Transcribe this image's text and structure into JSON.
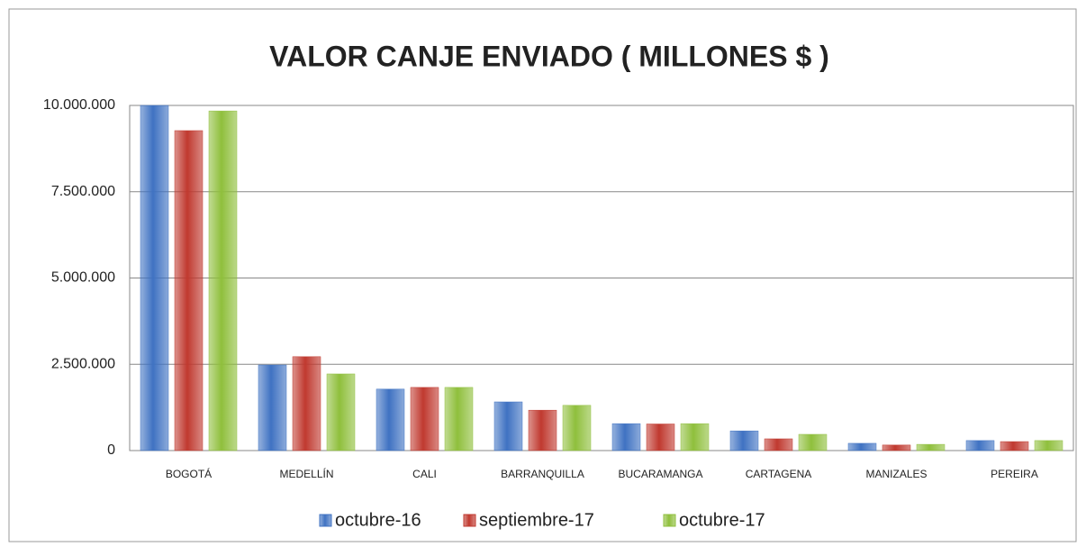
{
  "chart_data": {
    "type": "bar",
    "title": "VALOR CANJE ENVIADO ( MILLONES $ )",
    "categories": [
      "BOGOTÁ",
      "MEDELLÍN",
      "CALI",
      "BARRANQUILLA",
      "BUCARAMANGA",
      "CARTAGENA",
      "MANIZALES",
      "PEREIRA"
    ],
    "series": [
      {
        "name": "octubre-16",
        "color": "#3f72c2",
        "values": [
          10000000,
          2480000,
          1780000,
          1410000,
          780000,
          570000,
          210000,
          290000
        ]
      },
      {
        "name": "septiembre-17",
        "color": "#c0392f",
        "values": [
          9270000,
          2720000,
          1830000,
          1170000,
          770000,
          340000,
          160000,
          260000
        ]
      },
      {
        "name": "octubre-17",
        "color": "#8fbf3c",
        "values": [
          9840000,
          2220000,
          1830000,
          1310000,
          780000,
          470000,
          180000,
          290000
        ]
      }
    ],
    "ylim": [
      0,
      10000000
    ],
    "yticks": [
      0,
      {
        "value": 2500000,
        "label": "2.500.000"
      },
      {
        "value": 5000000,
        "label": "5.000.000"
      },
      {
        "value": 7500000,
        "label": "7.500.000"
      },
      {
        "value": 10000000,
        "label": "10.000.000"
      }
    ],
    "grid": true,
    "legend": "bottom"
  }
}
